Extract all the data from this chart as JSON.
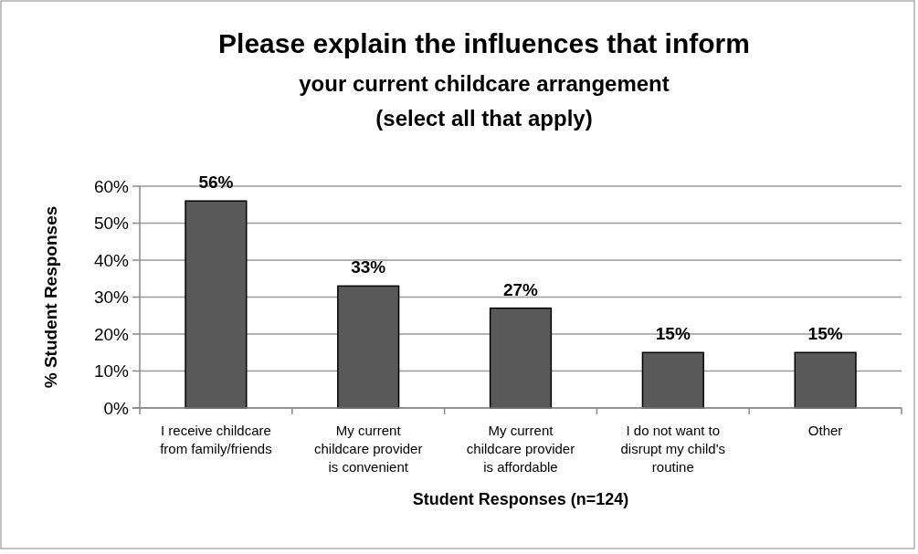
{
  "chart_data": {
    "type": "bar",
    "title": "Please explain the influences that inform",
    "subtitle": "your current childcare arrangement (select all that apply)",
    "xlabel": "Student Responses (n=124)",
    "ylabel": "% Student Responses",
    "categories": [
      "I receive childcare from family/friends",
      "My current childcare provider is convenient",
      "My current childcare provider is affordable",
      "I do not want to disrupt my child's routine",
      "Other"
    ],
    "values": [
      56,
      33,
      27,
      15,
      15
    ],
    "value_labels": [
      "56%",
      "33%",
      "27%",
      "15%",
      "15%"
    ],
    "color": "#595959",
    "ylim": [
      0,
      60
    ],
    "yticks": [
      {
        "value": 0,
        "label": "0%"
      },
      {
        "value": 10,
        "label": "10%"
      },
      {
        "value": 20,
        "label": "20%"
      },
      {
        "value": 30,
        "label": "30%"
      },
      {
        "value": 40,
        "label": "40%"
      },
      {
        "value": 50,
        "label": "50%"
      },
      {
        "value": 60,
        "label": "60%"
      }
    ],
    "grid": "y"
  }
}
